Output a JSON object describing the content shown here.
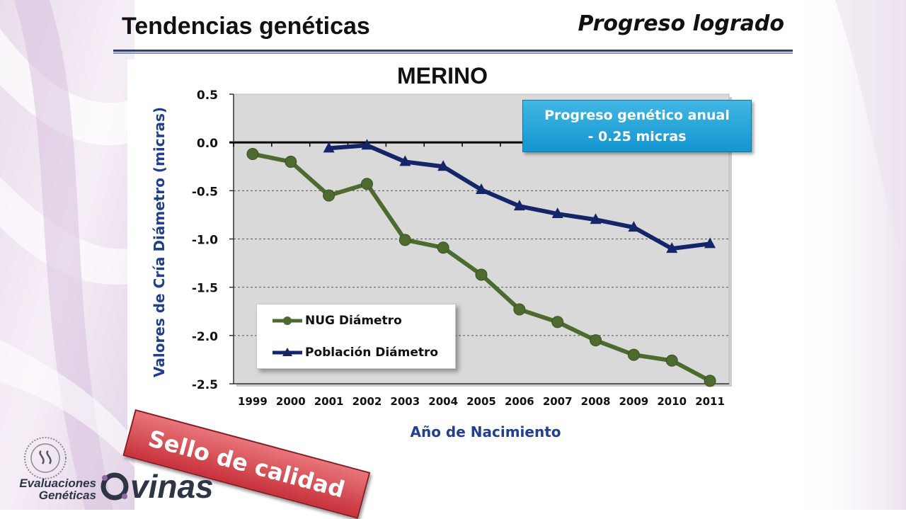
{
  "slide": {
    "title": "Tendencias genéticas",
    "subtitle": "Progreso logrado"
  },
  "callout": {
    "line1": "Progreso genético anual",
    "line2": "- 0.25 micras"
  },
  "stamp": {
    "text": "Sello de calidad"
  },
  "logo": {
    "line1": "Evaluaciones",
    "line2": "Genéticas",
    "brand": "vinas"
  },
  "colors": {
    "series_nug": "#4d6b2e",
    "series_pob": "#15256a",
    "axis_title": "#1f3f8f",
    "callout_bg": "#1d9fd8",
    "stamp_bg": "#d9444c"
  },
  "chart_data": {
    "type": "line",
    "title": "MERINO",
    "xlabel": "Año de Nacimiento",
    "ylabel": "Valores de Cría Diámetro (micras)",
    "categories": [
      "1999",
      "2000",
      "2001",
      "2002",
      "2003",
      "2004",
      "2005",
      "2006",
      "2007",
      "2008",
      "2009",
      "2010",
      "2011"
    ],
    "y_ticks": [
      "0.5",
      "0.0",
      "-0.5",
      "-1.0",
      "-1.5",
      "-2.0",
      "-2.5"
    ],
    "ylim": [
      -2.5,
      0.5
    ],
    "grid": "horizontal dashed",
    "legend_position": "bottom-left",
    "series": [
      {
        "name": "NUG Diámetro",
        "marker": "circle",
        "color": "#4d6b2e",
        "values": [
          -0.12,
          -0.2,
          -0.55,
          -0.43,
          -1.01,
          -1.09,
          -1.37,
          -1.73,
          -1.86,
          -2.05,
          -2.2,
          -2.26,
          -2.47
        ]
      },
      {
        "name": "Población Diámetro",
        "marker": "triangle",
        "color": "#15256a",
        "values": [
          null,
          null,
          -0.06,
          -0.03,
          -0.2,
          -0.25,
          -0.49,
          -0.66,
          -0.74,
          -0.8,
          -0.88,
          -1.1,
          -1.05
        ]
      }
    ]
  }
}
